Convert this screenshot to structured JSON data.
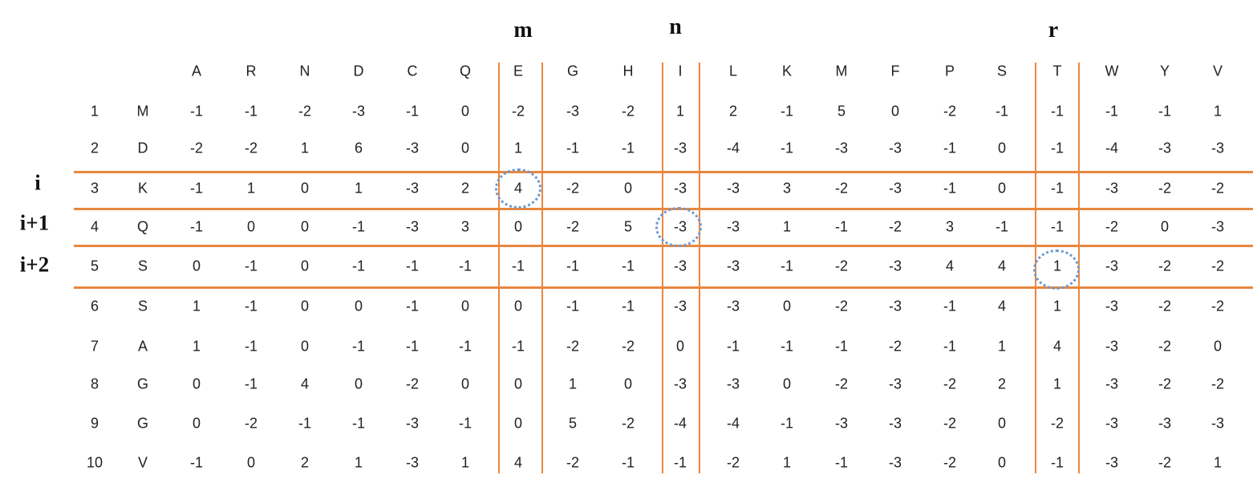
{
  "markers": {
    "m": "m",
    "n": "n",
    "r": "r"
  },
  "side_labels": [
    "i",
    "i+1",
    "i+2"
  ],
  "colors": {
    "lines": "#e8873e",
    "circles": "#6a9ad0"
  },
  "columns": [
    "A",
    "R",
    "N",
    "D",
    "C",
    "Q",
    "E",
    "G",
    "H",
    "I",
    "L",
    "K",
    "M",
    "F",
    "P",
    "S",
    "T",
    "W",
    "Y",
    "V"
  ],
  "rows": [
    {
      "index": "1",
      "residue": "M",
      "values": [
        "-1",
        "-1",
        "-2",
        "-3",
        "-1",
        "0",
        "-2",
        "-3",
        "-2",
        "1",
        "2",
        "-1",
        "5",
        "0",
        "-2",
        "-1",
        "-1",
        "-1",
        "-1",
        "1"
      ]
    },
    {
      "index": "2",
      "residue": "D",
      "values": [
        "-2",
        "-2",
        "1",
        "6",
        "-3",
        "0",
        "1",
        "-1",
        "-1",
        "-3",
        "-4",
        "-1",
        "-3",
        "-3",
        "-1",
        "0",
        "-1",
        "-4",
        "-3",
        "-3"
      ]
    },
    {
      "index": "3",
      "residue": "K",
      "values": [
        "-1",
        "1",
        "0",
        "1",
        "-3",
        "2",
        "4",
        "-2",
        "0",
        "-3",
        "-3",
        "3",
        "-2",
        "-3",
        "-1",
        "0",
        "-1",
        "-3",
        "-2",
        "-2"
      ]
    },
    {
      "index": "4",
      "residue": "Q",
      "values": [
        "-1",
        "0",
        "0",
        "-1",
        "-3",
        "3",
        "0",
        "-2",
        "5",
        "-3",
        "-3",
        "1",
        "-1",
        "-2",
        "3",
        "-1",
        "-1",
        "-2",
        "0",
        "-3"
      ]
    },
    {
      "index": "5",
      "residue": "S",
      "values": [
        "0",
        "-1",
        "0",
        "-1",
        "-1",
        "-1",
        "-1",
        "-1",
        "-1",
        "-3",
        "-3",
        "-1",
        "-2",
        "-3",
        "4",
        "4",
        "1",
        "-3",
        "-2",
        "-2"
      ]
    },
    {
      "index": "6",
      "residue": "S",
      "values": [
        "1",
        "-1",
        "0",
        "0",
        "-1",
        "0",
        "0",
        "-1",
        "-1",
        "-3",
        "-3",
        "0",
        "-2",
        "-3",
        "-1",
        "4",
        "1",
        "-3",
        "-2",
        "-2"
      ]
    },
    {
      "index": "7",
      "residue": "A",
      "values": [
        "1",
        "-1",
        "0",
        "-1",
        "-1",
        "-1",
        "-1",
        "-2",
        "-2",
        "0",
        "-1",
        "-1",
        "-1",
        "-2",
        "-1",
        "1",
        "4",
        "-3",
        "-2",
        "0"
      ]
    },
    {
      "index": "8",
      "residue": "G",
      "values": [
        "0",
        "-1",
        "4",
        "0",
        "-2",
        "0",
        "0",
        "1",
        "0",
        "-3",
        "-3",
        "0",
        "-2",
        "-3",
        "-2",
        "2",
        "1",
        "-3",
        "-2",
        "-2"
      ]
    },
    {
      "index": "9",
      "residue": "G",
      "values": [
        "0",
        "-2",
        "-1",
        "-1",
        "-3",
        "-1",
        "0",
        "5",
        "-2",
        "-4",
        "-4",
        "-1",
        "-3",
        "-3",
        "-2",
        "0",
        "-2",
        "-3",
        "-3",
        "-3"
      ]
    },
    {
      "index": "10",
      "residue": "V",
      "values": [
        "-1",
        "0",
        "2",
        "1",
        "-3",
        "1",
        "4",
        "-2",
        "-1",
        "-1",
        "-2",
        "1",
        "-1",
        "-3",
        "-2",
        "0",
        "-1",
        "-3",
        "-2",
        "1"
      ]
    }
  ],
  "highlighted_cells": [
    {
      "row": "3",
      "column": "E",
      "value": "4"
    },
    {
      "row": "4",
      "column": "I",
      "value": "-3"
    },
    {
      "row": "5",
      "column": "T",
      "value": "1"
    }
  ]
}
